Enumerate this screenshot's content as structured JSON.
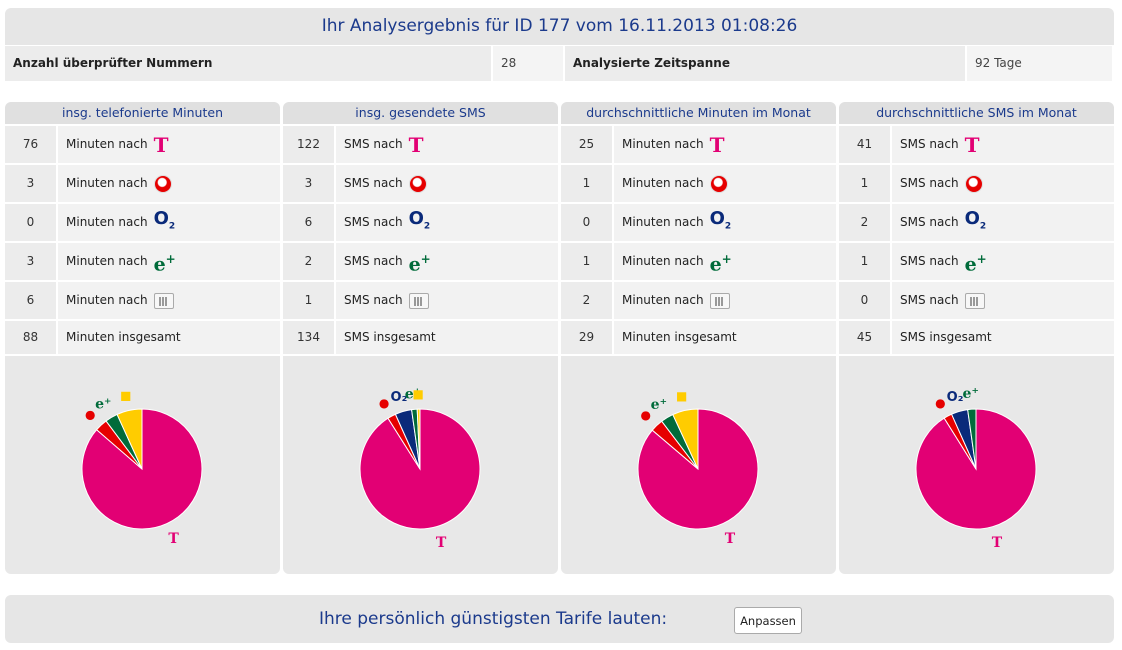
{
  "header": {
    "title": "Ihr Analysergebnis für ID 177 vom 16.11.2013 01:08:26"
  },
  "info": {
    "numbers_label": "Anzahl überprüfter Nummern",
    "numbers_value": "28",
    "period_label": "Analysierte Zeitspanne",
    "period_value": "92 Tage"
  },
  "colors": {
    "telekom": "#e20074",
    "vodafone": "#e60000",
    "o2": "#0a2a7a",
    "eplus": "#006b3a",
    "other": "#ffcc00",
    "title": "#1b3a8c"
  },
  "networks": [
    {
      "key": "telekom",
      "icon": "telekom-icon",
      "color": "#e20074"
    },
    {
      "key": "vodafone",
      "icon": "vodafone-icon",
      "color": "#e60000"
    },
    {
      "key": "o2",
      "icon": "o2-icon",
      "color": "#0a2a7a"
    },
    {
      "key": "eplus",
      "icon": "eplus-icon",
      "color": "#006b3a"
    },
    {
      "key": "other",
      "icon": "other-network-icon",
      "color": "#ffcc00"
    }
  ],
  "panels": [
    {
      "title": "insg. telefonierte Minuten",
      "row_label": "Minuten nach",
      "total_label": "Minuten insgesamt",
      "values": [
        "76",
        "3",
        "0",
        "3",
        "6"
      ],
      "total": "88"
    },
    {
      "title": "insg. gesendete SMS",
      "row_label": "SMS nach",
      "total_label": "SMS insgesamt",
      "values": [
        "122",
        "3",
        "6",
        "2",
        "1"
      ],
      "total": "134"
    },
    {
      "title": "durchschnittliche Minuten im Monat",
      "row_label": "Minuten nach",
      "total_label": "Minuten insgesamt",
      "values": [
        "25",
        "1",
        "0",
        "1",
        "2"
      ],
      "total": "29"
    },
    {
      "title": "durchschnittliche SMS im Monat",
      "row_label": "SMS nach",
      "total_label": "SMS insgesamt",
      "values": [
        "41",
        "1",
        "2",
        "1",
        "0"
      ],
      "total": "45"
    }
  ],
  "chart_data": [
    {
      "type": "pie",
      "categories": [
        "Telekom",
        "Vodafone",
        "O2",
        "E-Plus",
        "Andere"
      ],
      "values": [
        76,
        3,
        0,
        3,
        6
      ]
    },
    {
      "type": "pie",
      "categories": [
        "Telekom",
        "Vodafone",
        "O2",
        "E-Plus",
        "Andere"
      ],
      "values": [
        122,
        3,
        6,
        2,
        1
      ]
    },
    {
      "type": "pie",
      "categories": [
        "Telekom",
        "Vodafone",
        "O2",
        "E-Plus",
        "Andere"
      ],
      "values": [
        25,
        1,
        0,
        1,
        2
      ]
    },
    {
      "type": "pie",
      "categories": [
        "Telekom",
        "Vodafone",
        "O2",
        "E-Plus",
        "Andere"
      ],
      "values": [
        41,
        1,
        2,
        1,
        0
      ]
    }
  ],
  "footer": {
    "text": "Ihre persönlich günstigsten Tarife lauten:",
    "button_label": "Anpassen"
  }
}
